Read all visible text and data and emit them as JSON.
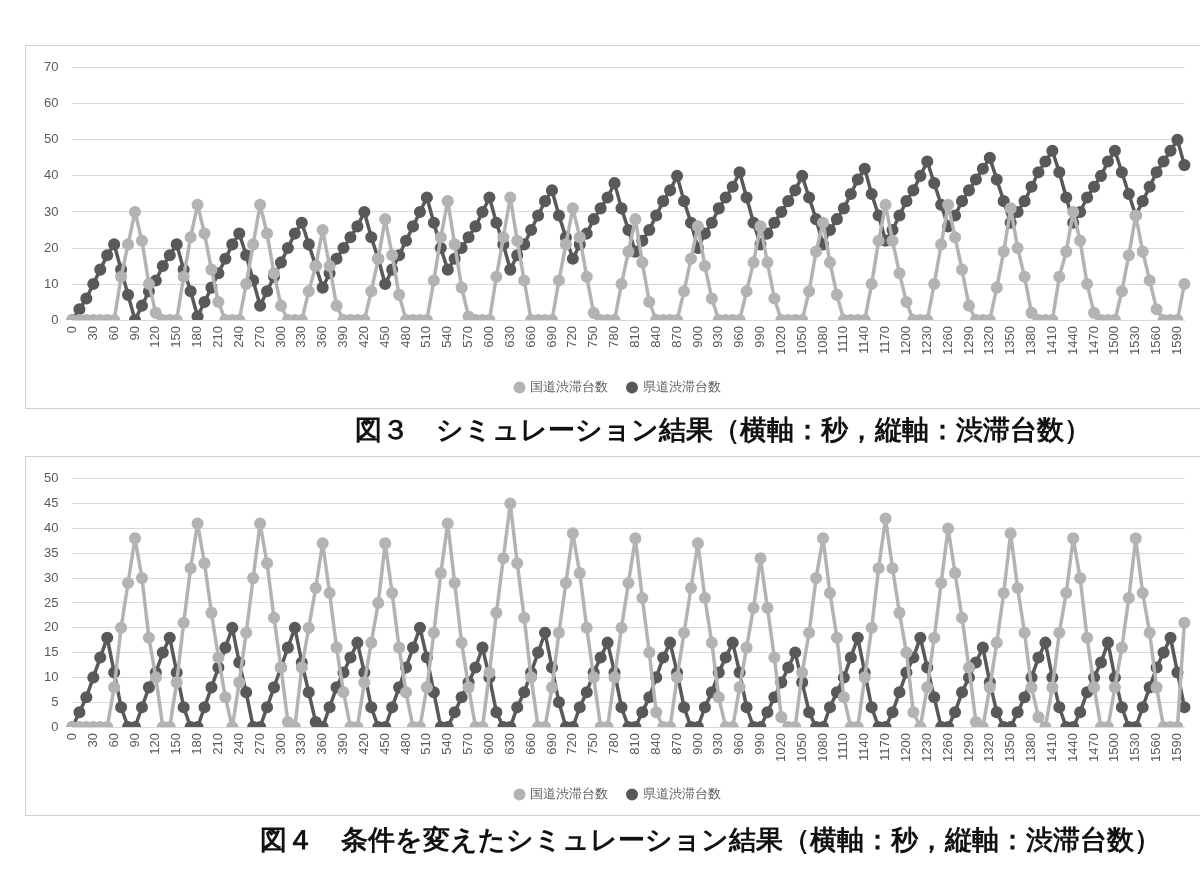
{
  "chart_data": [
    {
      "type": "line",
      "title": "図３　シミュレーション結果（横軸：秒，縦軸：渋滞台数）",
      "categories": [
        "0",
        null,
        null,
        "30",
        null,
        null,
        "60",
        null,
        null,
        "90",
        null,
        null,
        "120",
        null,
        null,
        "150",
        null,
        null,
        "180",
        null,
        null,
        "210",
        null,
        null,
        "240",
        null,
        null,
        "270",
        null,
        null,
        "300",
        null,
        null,
        "330",
        null,
        null,
        "360",
        null,
        null,
        "390",
        null,
        null,
        "420",
        null,
        null,
        "450",
        null,
        null,
        "480",
        null,
        null,
        "510",
        null,
        null,
        "540",
        null,
        null,
        "570",
        null,
        null,
        "600",
        null,
        null,
        "630",
        null,
        null,
        "660",
        null,
        null,
        "690",
        null,
        null,
        "720",
        null,
        null,
        "750",
        null,
        null,
        "780",
        null,
        null,
        "810",
        null,
        null,
        "840",
        null,
        null,
        "870",
        null,
        null,
        "900",
        null,
        null,
        "930",
        null,
        null,
        "960",
        null,
        null,
        "990",
        null,
        null,
        "1020",
        null,
        null,
        "1050",
        null,
        null,
        "1080",
        null,
        null,
        "1110",
        null,
        null,
        "1140",
        null,
        null,
        "1170",
        null,
        null,
        "1200",
        null,
        null,
        "1230",
        null,
        null,
        "1260",
        null,
        null,
        "1290",
        null,
        null,
        "1320",
        null,
        null,
        "1350",
        null,
        null,
        "1380",
        null,
        null,
        "1410",
        null,
        null,
        "1440",
        null,
        null,
        "1470",
        null,
        null,
        "1500",
        null,
        null,
        "1530",
        null,
        null,
        "1560",
        null,
        null,
        "1590",
        null
      ],
      "series": [
        {
          "name": "国道渋滞台数",
          "color": "#b3b3b3",
          "values": [
            0,
            0,
            0,
            0,
            0,
            0,
            0,
            12,
            21,
            30,
            22,
            10,
            2,
            0,
            0,
            0,
            12,
            23,
            32,
            24,
            14,
            5,
            0,
            0,
            0,
            10,
            21,
            32,
            24,
            13,
            4,
            0,
            0,
            0,
            8,
            15,
            25,
            15,
            4,
            0,
            0,
            0,
            0,
            8,
            17,
            28,
            18,
            7,
            0,
            0,
            0,
            0,
            11,
            23,
            33,
            21,
            9,
            1,
            0,
            0,
            0,
            12,
            23,
            34,
            22,
            11,
            0,
            0,
            0,
            0,
            11,
            21,
            31,
            23,
            12,
            2,
            0,
            0,
            0,
            10,
            19,
            28,
            16,
            5,
            0,
            0,
            0,
            0,
            8,
            17,
            26,
            15,
            6,
            0,
            0,
            0,
            0,
            8,
            16,
            26,
            16,
            6,
            0,
            0,
            0,
            0,
            8,
            19,
            27,
            16,
            7,
            0,
            0,
            0,
            0,
            10,
            22,
            32,
            22,
            13,
            5,
            0,
            0,
            0,
            10,
            21,
            32,
            23,
            14,
            4,
            0,
            0,
            0,
            9,
            19,
            31,
            20,
            12,
            2,
            0,
            0,
            0,
            12,
            19,
            30,
            22,
            10,
            2,
            0,
            0,
            0,
            8,
            18,
            29,
            19,
            11,
            3,
            0,
            0,
            0,
            10
          ]
        },
        {
          "name": "県道渋滞台数",
          "color": "#595959",
          "values": [
            0,
            3,
            6,
            10,
            14,
            18,
            21,
            14,
            7,
            0,
            4,
            8,
            11,
            15,
            18,
            21,
            14,
            8,
            1,
            5,
            9,
            13,
            17,
            21,
            24,
            18,
            11,
            4,
            8,
            12,
            16,
            20,
            24,
            27,
            21,
            15,
            9,
            13,
            17,
            20,
            23,
            26,
            30,
            23,
            17,
            10,
            14,
            18,
            22,
            26,
            30,
            34,
            27,
            20,
            14,
            17,
            20,
            23,
            26,
            30,
            34,
            27,
            21,
            14,
            18,
            21,
            25,
            29,
            33,
            36,
            29,
            23,
            17,
            21,
            24,
            28,
            31,
            34,
            38,
            31,
            25,
            19,
            22,
            25,
            29,
            33,
            36,
            40,
            33,
            27,
            20,
            24,
            27,
            31,
            34,
            37,
            41,
            34,
            27,
            21,
            24,
            27,
            30,
            33,
            36,
            40,
            34,
            28,
            21,
            25,
            28,
            31,
            35,
            39,
            42,
            35,
            29,
            22,
            25,
            29,
            33,
            36,
            40,
            44,
            38,
            32,
            26,
            29,
            33,
            36,
            39,
            42,
            45,
            39,
            33,
            27,
            30,
            33,
            37,
            41,
            44,
            47,
            41,
            34,
            27,
            30,
            34,
            37,
            40,
            44,
            47,
            41,
            35,
            29,
            33,
            37,
            41,
            44,
            47,
            50,
            43
          ]
        }
      ],
      "ylim": [
        0,
        70
      ],
      "yticks": [
        0,
        10,
        20,
        30,
        40,
        50,
        60,
        70
      ],
      "grid": "y",
      "legend": "bottom",
      "marker": "circle",
      "line_style": "solid"
    },
    {
      "type": "line",
      "title": "図４　条件を変えたシミュレーション結果（横軸：秒，縦軸：渋滞台数）",
      "categories": [
        "0",
        null,
        null,
        "30",
        null,
        null,
        "60",
        null,
        null,
        "90",
        null,
        null,
        "120",
        null,
        null,
        "150",
        null,
        null,
        "180",
        null,
        null,
        "210",
        null,
        null,
        "240",
        null,
        null,
        "270",
        null,
        null,
        "300",
        null,
        null,
        "330",
        null,
        null,
        "360",
        null,
        null,
        "390",
        null,
        null,
        "420",
        null,
        null,
        "450",
        null,
        null,
        "480",
        null,
        null,
        "510",
        null,
        null,
        "540",
        null,
        null,
        "570",
        null,
        null,
        "600",
        null,
        null,
        "630",
        null,
        null,
        "660",
        null,
        null,
        "690",
        null,
        null,
        "720",
        null,
        null,
        "750",
        null,
        null,
        "780",
        null,
        null,
        "810",
        null,
        null,
        "840",
        null,
        null,
        "870",
        null,
        null,
        "900",
        null,
        null,
        "930",
        null,
        null,
        "960",
        null,
        null,
        "990",
        null,
        null,
        "1020",
        null,
        null,
        "1050",
        null,
        null,
        "1080",
        null,
        null,
        "1110",
        null,
        null,
        "1140",
        null,
        null,
        "1170",
        null,
        null,
        "1200",
        null,
        null,
        "1230",
        null,
        null,
        "1260",
        null,
        null,
        "1290",
        null,
        null,
        "1320",
        null,
        null,
        "1350",
        null,
        null,
        "1380",
        null,
        null,
        "1410",
        null,
        null,
        "1440",
        null,
        null,
        "1470",
        null,
        null,
        "1500",
        null,
        null,
        "1530",
        null,
        null,
        "1560",
        null,
        null,
        "1590",
        null
      ],
      "series": [
        {
          "name": "国道渋滞台数",
          "color": "#b3b3b3",
          "values": [
            0,
            0,
            0,
            0,
            0,
            0,
            8,
            20,
            29,
            38,
            30,
            18,
            10,
            0,
            0,
            9,
            21,
            32,
            41,
            33,
            23,
            14,
            6,
            0,
            9,
            19,
            30,
            41,
            33,
            22,
            12,
            1,
            0,
            12,
            20,
            28,
            37,
            27,
            16,
            7,
            0,
            0,
            9,
            17,
            25,
            37,
            27,
            16,
            7,
            0,
            0,
            8,
            19,
            31,
            41,
            29,
            17,
            8,
            0,
            0,
            11,
            23,
            34,
            45,
            33,
            22,
            10,
            0,
            0,
            8,
            19,
            29,
            39,
            31,
            20,
            10,
            0,
            0,
            10,
            20,
            29,
            38,
            26,
            15,
            3,
            0,
            0,
            10,
            19,
            28,
            37,
            26,
            17,
            6,
            0,
            0,
            8,
            16,
            24,
            34,
            24,
            14,
            2,
            0,
            0,
            11,
            19,
            30,
            38,
            27,
            18,
            6,
            0,
            0,
            10,
            20,
            32,
            42,
            32,
            23,
            15,
            3,
            0,
            8,
            18,
            29,
            40,
            31,
            22,
            12,
            1,
            0,
            8,
            17,
            27,
            39,
            28,
            19,
            8,
            2,
            0,
            8,
            19,
            27,
            38,
            30,
            18,
            8,
            0,
            0,
            8,
            16,
            26,
            38,
            27,
            19,
            8,
            0,
            0,
            0,
            21
          ]
        },
        {
          "name": "県道渋滞台数",
          "color": "#595959",
          "values": [
            0,
            3,
            6,
            10,
            14,
            18,
            11,
            4,
            0,
            0,
            4,
            8,
            11,
            15,
            18,
            11,
            4,
            0,
            0,
            4,
            8,
            12,
            16,
            20,
            13,
            7,
            0,
            0,
            4,
            8,
            12,
            16,
            20,
            13,
            7,
            1,
            0,
            4,
            8,
            11,
            14,
            17,
            11,
            4,
            0,
            0,
            4,
            8,
            12,
            16,
            20,
            14,
            7,
            0,
            0,
            3,
            6,
            9,
            12,
            16,
            10,
            3,
            0,
            0,
            4,
            7,
            11,
            15,
            19,
            12,
            5,
            0,
            0,
            4,
            7,
            11,
            14,
            17,
            11,
            4,
            0,
            0,
            3,
            6,
            10,
            14,
            17,
            11,
            4,
            0,
            0,
            4,
            7,
            11,
            14,
            17,
            11,
            4,
            0,
            0,
            3,
            6,
            9,
            12,
            15,
            9,
            3,
            0,
            0,
            4,
            7,
            10,
            14,
            18,
            11,
            4,
            0,
            0,
            3,
            7,
            11,
            14,
            18,
            12,
            6,
            0,
            0,
            3,
            7,
            10,
            13,
            16,
            9,
            3,
            0,
            0,
            3,
            6,
            10,
            14,
            17,
            10,
            4,
            0,
            0,
            3,
            7,
            10,
            13,
            17,
            10,
            4,
            0,
            0,
            4,
            8,
            12,
            15,
            18,
            11,
            4
          ]
        }
      ],
      "ylim": [
        0,
        50
      ],
      "yticks": [
        0,
        5,
        10,
        15,
        20,
        25,
        30,
        35,
        40,
        45,
        50
      ],
      "grid": "y",
      "legend": "bottom",
      "marker": "circle",
      "line_style": "solid"
    }
  ]
}
